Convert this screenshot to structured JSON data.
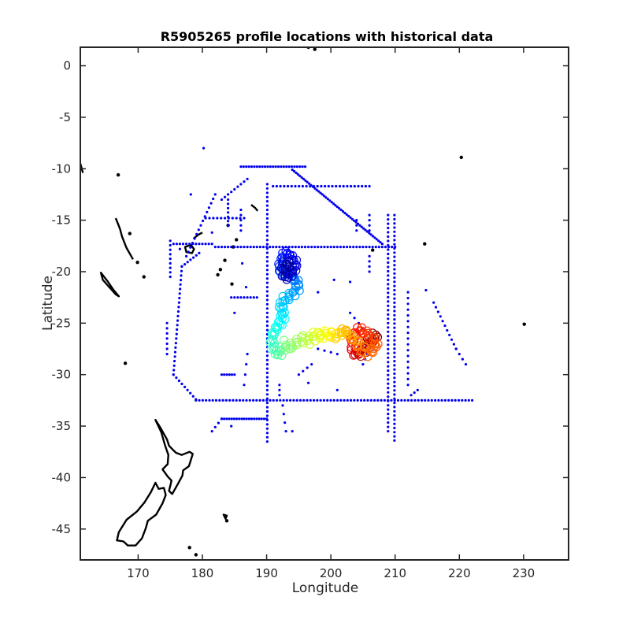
{
  "chart_data": {
    "type": "scatter",
    "title": "R5905265 profile locations with historical data",
    "xlabel": "Longitude",
    "ylabel": "Latitude",
    "xlim": [
      161,
      237
    ],
    "ylim": [
      -48,
      1.8
    ],
    "xticks": [
      170,
      180,
      190,
      200,
      210,
      220,
      230
    ],
    "yticks": [
      0,
      -5,
      -10,
      -15,
      -20,
      -25,
      -30,
      -35,
      -40,
      -45
    ],
    "grid": false,
    "legend": "none",
    "colors": {
      "historical": "#0000ee",
      "coastline": "#000000",
      "axes": "#262626",
      "colormap": [
        "#00008f",
        "#0000ff",
        "#0080ff",
        "#00ffff",
        "#80ff80",
        "#ffff00",
        "#ff8000",
        "#ff0000",
        "#800000"
      ]
    },
    "series": [
      {
        "marker": "dot",
        "tracks": [
          {
            "from": [
              186,
              -9.8
            ],
            "to": [
              196,
              -9.8
            ],
            "n": 24
          },
          {
            "from": [
              194,
              -10.1
            ],
            "to": [
              208,
              -17.3
            ],
            "n": 48
          },
          {
            "from": [
              191,
              -11.7
            ],
            "to": [
              206,
              -11.7
            ],
            "n": 26
          },
          {
            "from": [
              190.1,
              -11.5
            ],
            "to": [
              190.1,
              -36.5
            ],
            "n": 60
          },
          {
            "from": [
              209.9,
              -14.5
            ],
            "to": [
              209.9,
              -36.4
            ],
            "n": 54
          },
          {
            "from": [
              208.9,
              -14.5
            ],
            "to": [
              208.9,
              -35.5
            ],
            "n": 50
          },
          {
            "from": [
              182,
              -17.6
            ],
            "to": [
              210,
              -17.6
            ],
            "n": 56
          },
          {
            "from": [
              175.5,
              -17.3
            ],
            "to": [
              181.5,
              -17.3
            ],
            "n": 12
          },
          {
            "from": [
              176.8,
              -19.5
            ],
            "to": [
              175.5,
              -30.0
            ],
            "n": 24
          },
          {
            "from": [
              176.8,
              -19.5
            ],
            "to": [
              179.5,
              -18.2
            ],
            "n": 6
          },
          {
            "from": [
              175.5,
              -30.0
            ],
            "to": [
              179.0,
              -32.4
            ],
            "n": 8
          },
          {
            "from": [
              179.0,
              -32.5
            ],
            "to": [
              222.0,
              -32.5
            ],
            "n": 82
          },
          {
            "from": [
              183,
              -34.3
            ],
            "to": [
              190,
              -34.3
            ],
            "n": 18
          },
          {
            "from": [
              182,
              -12.5
            ],
            "to": [
              177.5,
              -18.5
            ],
            "n": 14
          },
          {
            "from": [
              187,
              -11.0
            ],
            "to": [
              183,
              -13.0
            ],
            "n": 8
          },
          {
            "from": [
              175,
              -17.0
            ],
            "to": [
              175,
              -20.5
            ],
            "n": 8
          },
          {
            "from": [
              180.5,
              -14.8
            ],
            "to": [
              186.5,
              -14.8
            ],
            "n": 10
          },
          {
            "from": [
              184,
              -15.5
            ],
            "to": [
              184,
              -13.0
            ],
            "n": 6
          },
          {
            "from": [
              186,
              -16.0
            ],
            "to": [
              186,
              -14.0
            ],
            "n": 4
          },
          {
            "from": [
              174.5,
              -25.0
            ],
            "to": [
              174.5,
              -28.0
            ],
            "n": 6
          },
          {
            "from": [
              184.5,
              -22.5
            ],
            "to": [
              188.5,
              -22.5
            ],
            "n": 8
          },
          {
            "from": [
              183,
              -30.0
            ],
            "to": [
              185,
              -30.0
            ],
            "n": 5
          },
          {
            "from": [
              183,
              -34.3
            ],
            "to": [
              181.5,
              -35.5
            ],
            "n": 3
          },
          {
            "from": [
              192.5,
              -33.0
            ],
            "to": [
              193,
              -35.5
            ],
            "n": 3
          },
          {
            "from": [
              206,
              -16.0
            ],
            "to": [
              206,
              -14.5
            ],
            "n": 3
          },
          {
            "from": [
              206,
              -18.5
            ],
            "to": [
              206,
              -20.0
            ],
            "n": 3
          },
          {
            "from": [
              203,
              -24.0
            ],
            "to": [
              205,
              -25.5
            ],
            "n": 3
          },
          {
            "from": [
              206,
              -27.5
            ],
            "to": [
              205,
              -29.0
            ],
            "n": 3
          },
          {
            "from": [
              212,
              -22.0
            ],
            "to": [
              212,
              -31.0
            ],
            "n": 16
          },
          {
            "from": [
              213.5,
              -31.5
            ],
            "to": [
              212.5,
              -32.0
            ],
            "n": 2
          },
          {
            "from": [
              216,
              -23.0
            ],
            "to": [
              219.5,
              -27.5
            ],
            "n": 10
          },
          {
            "from": [
              219.5,
              -27.5
            ],
            "to": [
              221,
              -29.0
            ],
            "n": 3
          },
          {
            "from": [
              204,
              -15.0
            ],
            "to": [
              204,
              -16.0
            ],
            "n": 2
          },
          {
            "from": [
              198,
              -27.5
            ],
            "to": [
              201,
              -28.0
            ],
            "n": 3
          },
          {
            "from": [
              197,
              -29.0
            ],
            "to": [
              195,
              -30.0
            ],
            "n": 3
          },
          {
            "from": [
              192,
              -31.0
            ],
            "to": [
              192,
              -32.0
            ],
            "n": 2
          },
          {
            "from": [
              187,
              -28.0
            ],
            "to": [
              186.5,
              -31.0
            ],
            "n": 3
          }
        ],
        "points": [
          [
            180.2,
            -8.0
          ],
          [
            178.2,
            -12.5
          ],
          [
            181.5,
            -16.2
          ],
          [
            196.5,
            -30.8
          ],
          [
            201.0,
            -31.5
          ],
          [
            194.0,
            -35.5
          ],
          [
            185.0,
            -24.0
          ],
          [
            184.5,
            -35.0
          ],
          [
            176.5,
            -17.8
          ],
          [
            214.8,
            -21.8
          ],
          [
            200.5,
            -20.8
          ],
          [
            186.2,
            -19.2
          ],
          [
            186.8,
            -21.5
          ],
          [
            198.0,
            -22.0
          ],
          [
            203.0,
            -21.0
          ]
        ]
      },
      {
        "name": "R5905265",
        "marker": "open-circle",
        "color_by": "cycle",
        "points": [
          [
            207.0,
            -26.5
          ],
          [
            206.7,
            -26.3
          ],
          [
            206.0,
            -26.8
          ],
          [
            205.5,
            -27.2
          ],
          [
            204.8,
            -27.8
          ],
          [
            204.0,
            -28.0
          ],
          [
            203.5,
            -27.5
          ],
          [
            203.2,
            -26.7
          ],
          [
            203.6,
            -26.0
          ],
          [
            204.4,
            -25.6
          ],
          [
            205.3,
            -25.8
          ],
          [
            206.2,
            -26.2
          ],
          [
            207.2,
            -26.9
          ],
          [
            206.8,
            -27.5
          ],
          [
            205.8,
            -27.9
          ],
          [
            204.6,
            -27.4
          ],
          [
            203.8,
            -26.8
          ],
          [
            202.9,
            -26.3
          ],
          [
            202.3,
            -25.8
          ],
          [
            201.7,
            -26.0
          ],
          [
            201.0,
            -26.4
          ],
          [
            200.2,
            -26.2
          ],
          [
            199.4,
            -26.0
          ],
          [
            198.6,
            -26.3
          ],
          [
            197.8,
            -26.1
          ],
          [
            197.0,
            -26.5
          ],
          [
            196.2,
            -26.8
          ],
          [
            195.4,
            -26.5
          ],
          [
            194.6,
            -26.9
          ],
          [
            193.8,
            -27.3
          ],
          [
            193.0,
            -27.0
          ],
          [
            192.3,
            -27.6
          ],
          [
            191.7,
            -28.0
          ],
          [
            191.2,
            -27.5
          ],
          [
            190.8,
            -26.8
          ],
          [
            190.9,
            -26.0
          ],
          [
            191.4,
            -25.4
          ],
          [
            192.0,
            -25.0
          ],
          [
            192.5,
            -24.4
          ],
          [
            192.6,
            -23.8
          ],
          [
            192.3,
            -23.2
          ],
          [
            192.8,
            -22.6
          ],
          [
            193.6,
            -22.4
          ],
          [
            194.3,
            -22.0
          ],
          [
            194.8,
            -21.5
          ],
          [
            194.6,
            -20.9
          ],
          [
            194.0,
            -20.6
          ],
          [
            193.4,
            -20.3
          ],
          [
            192.8,
            -20.2
          ],
          [
            192.3,
            -19.8
          ],
          [
            192.2,
            -19.2
          ],
          [
            192.6,
            -18.6
          ],
          [
            193.2,
            -18.3
          ],
          [
            193.8,
            -18.6
          ],
          [
            194.3,
            -19.1
          ],
          [
            194.4,
            -19.7
          ],
          [
            193.9,
            -20.2
          ],
          [
            193.2,
            -20.5
          ],
          [
            192.6,
            -20.0
          ],
          [
            192.9,
            -19.4
          ],
          [
            193.5,
            -19.0
          ]
        ]
      }
    ],
    "coastlines": [
      {
        "name": "North Island",
        "closed": true,
        "lonlat": [
          [
            172.7,
            -34.4
          ],
          [
            173.5,
            -35.2
          ],
          [
            174.5,
            -36.3
          ],
          [
            174.8,
            -36.9
          ],
          [
            175.4,
            -37.3
          ],
          [
            175.9,
            -37.6
          ],
          [
            176.8,
            -37.8
          ],
          [
            178.0,
            -37.5
          ],
          [
            178.5,
            -37.7
          ],
          [
            177.9,
            -38.9
          ],
          [
            177.0,
            -39.3
          ],
          [
            176.9,
            -39.8
          ],
          [
            176.2,
            -40.6
          ],
          [
            175.3,
            -41.6
          ],
          [
            174.8,
            -41.3
          ],
          [
            175.2,
            -40.3
          ],
          [
            174.6,
            -39.9
          ],
          [
            173.8,
            -39.2
          ],
          [
            174.6,
            -38.7
          ],
          [
            174.7,
            -37.8
          ],
          [
            174.2,
            -36.9
          ],
          [
            173.6,
            -35.6
          ],
          [
            172.7,
            -34.4
          ]
        ]
      },
      {
        "name": "South Island",
        "closed": true,
        "lonlat": [
          [
            172.7,
            -40.5
          ],
          [
            173.2,
            -41.1
          ],
          [
            174.0,
            -41.0
          ],
          [
            174.3,
            -41.7
          ],
          [
            173.8,
            -42.5
          ],
          [
            172.8,
            -43.6
          ],
          [
            171.5,
            -44.2
          ],
          [
            171.2,
            -44.9
          ],
          [
            170.6,
            -45.9
          ],
          [
            169.6,
            -46.6
          ],
          [
            168.4,
            -46.6
          ],
          [
            167.7,
            -46.2
          ],
          [
            166.7,
            -46.1
          ],
          [
            167.0,
            -45.3
          ],
          [
            168.2,
            -44.1
          ],
          [
            169.8,
            -43.3
          ],
          [
            171.0,
            -42.4
          ],
          [
            172.0,
            -41.4
          ],
          [
            172.7,
            -40.5
          ]
        ]
      },
      {
        "name": "New Caledonia",
        "closed": true,
        "lonlat": [
          [
            164.2,
            -20.1
          ],
          [
            165.2,
            -20.9
          ],
          [
            166.2,
            -21.8
          ],
          [
            167.0,
            -22.4
          ],
          [
            166.5,
            -22.2
          ],
          [
            165.5,
            -21.5
          ],
          [
            164.5,
            -20.8
          ],
          [
            164.2,
            -20.1
          ]
        ]
      },
      {
        "name": "Viti Levu",
        "closed": true,
        "lonlat": [
          [
            177.3,
            -17.6
          ],
          [
            178.2,
            -17.4
          ],
          [
            178.7,
            -17.8
          ],
          [
            178.4,
            -18.2
          ],
          [
            177.5,
            -18.1
          ],
          [
            177.3,
            -17.6
          ]
        ]
      },
      {
        "name": "Vanua Levu",
        "closed": false,
        "lonlat": [
          [
            178.6,
            -16.8
          ],
          [
            179.4,
            -16.4
          ],
          [
            180.0,
            -16.2
          ]
        ]
      },
      {
        "name": "Chatham",
        "closed": true,
        "lonlat": [
          [
            183.3,
            -43.6
          ],
          [
            183.8,
            -43.7
          ],
          [
            183.6,
            -44.0
          ],
          [
            183.3,
            -43.6
          ]
        ]
      },
      {
        "name": "Vanuatu",
        "closed": false,
        "lonlat": [
          [
            166.5,
            -14.8
          ],
          [
            166.9,
            -15.4
          ],
          [
            167.2,
            -15.9
          ],
          [
            167.5,
            -16.6
          ],
          [
            168.2,
            -17.7
          ],
          [
            169.2,
            -18.8
          ]
        ]
      },
      {
        "name": "Solomon",
        "closed": false,
        "lonlat": [
          [
            161.0,
            -9.5
          ],
          [
            161.4,
            -10.4
          ]
        ]
      },
      {
        "name": "Samoa",
        "closed": false,
        "lonlat": [
          [
            187.6,
            -13.5
          ],
          [
            188.2,
            -13.8
          ],
          [
            188.6,
            -14.1
          ]
        ]
      }
    ],
    "coast_dots": [
      [
        166.9,
        -10.6
      ],
      [
        168.0,
        -28.9
      ],
      [
        168.7,
        -16.3
      ],
      [
        169.9,
        -19.1
      ],
      [
        170.9,
        -20.5
      ],
      [
        182.4,
        -20.3
      ],
      [
        184.6,
        -21.2
      ],
      [
        185.3,
        -16.9
      ],
      [
        183.5,
        -18.9
      ],
      [
        182.8,
        -19.8
      ],
      [
        184.8,
        -17.6
      ],
      [
        184.0,
        -15.5
      ],
      [
        214.6,
        -17.3
      ],
      [
        220.3,
        -8.9
      ],
      [
        230.1,
        -25.1
      ],
      [
        179.0,
        -47.5
      ],
      [
        178.0,
        -46.8
      ],
      [
        183.8,
        -44.2
      ],
      [
        196.5,
        1.8
      ],
      [
        197.5,
        1.6
      ],
      [
        206.5,
        -17.9
      ]
    ]
  }
}
